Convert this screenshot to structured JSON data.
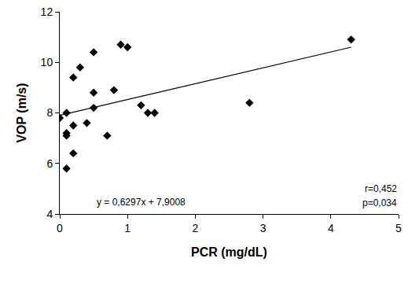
{
  "chart_data": {
    "type": "scatter",
    "x_label": "PCR (mg/dL)",
    "y_label": "VOP (m/s)",
    "series": [
      {
        "type": "scatter",
        "marker": "diamond",
        "color": "#000000",
        "x": [
          0,
          0.1,
          0.1,
          0.1,
          0.1,
          0.2,
          0.2,
          0.2,
          0.3,
          0.4,
          0.5,
          0.5,
          0.5,
          0.7,
          0.8,
          0.9,
          1.0,
          1.2,
          1.3,
          1.4,
          2.8,
          4.3
        ],
        "values": [
          7.8,
          8.0,
          7.2,
          7.1,
          5.8,
          9.4,
          7.5,
          6.4,
          9.8,
          7.6,
          8.8,
          8.2,
          10.4,
          7.1,
          8.9,
          10.7,
          10.6,
          8.3,
          8.0,
          8.0,
          8.4,
          10.9
        ]
      },
      {
        "type": "line",
        "line_style": "solid",
        "color": "#000000",
        "x": [
          0,
          4.3
        ],
        "values": [
          7.9,
          10.6
        ]
      }
    ],
    "annotations": [
      "y = 0,6297x + 7,9008",
      "r=0,452",
      "p=0,034"
    ],
    "xlim": [
      0,
      5
    ],
    "xticks": [
      0,
      1,
      2,
      3,
      4,
      5
    ],
    "ylim": [
      4,
      12
    ],
    "yticks": [
      4,
      6,
      8,
      10,
      12
    ],
    "grid": false
  }
}
